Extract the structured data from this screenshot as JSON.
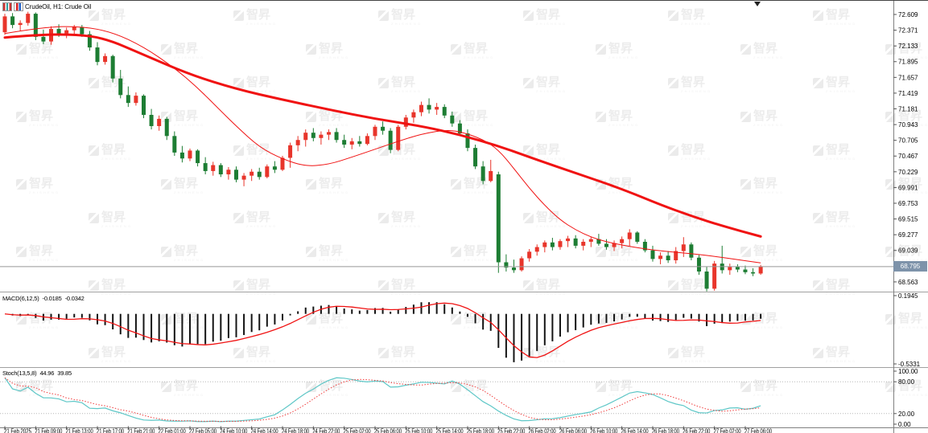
{
  "window": {
    "symbol_label": "CrudeOil, H1: Crude Oil"
  },
  "watermark": {
    "text": "智昇",
    "subtext": "ZHISHENG"
  },
  "colors": {
    "up": "#e8352b",
    "down": "#1d7d33",
    "ma": "#f01212",
    "macd_hist": "#141414",
    "macd_signal": "#f01212",
    "stoch_main": "#5ec7c7",
    "stoch_signal": "#f03c3c",
    "separator": "#a0a0a0",
    "axis_line": "#808080",
    "top_border": "#444444",
    "price_line": "#999999",
    "badge_bg": "#7e93aa",
    "badge_text": "#ffffff",
    "level_dots": "#b8b8b8"
  },
  "price_axis": {
    "current": "68.795"
  },
  "indicators": {
    "macd": {
      "name": "MACD(6,12,5)",
      "main": "-0.0185",
      "signal": "-0.0342"
    },
    "stoch": {
      "name": "Stoch(13,5,8)",
      "main": "44.96",
      "signal": "39.85"
    }
  },
  "chart_data": {
    "type": "candlestick",
    "title": "CrudeOil, H1: Crude Oil",
    "symbol": "Crude Oil",
    "timeframe": "H1",
    "price_axis_labels": [
      "72.609",
      "72.371",
      "72.133",
      "71.895",
      "71.657",
      "71.419",
      "71.181",
      "70.943",
      "70.705",
      "70.467",
      "70.229",
      "69.991",
      "69.753",
      "69.515",
      "69.277",
      "69.039",
      "68.563"
    ],
    "price_step": 0.238,
    "price_top_label": 72.609,
    "current_price": 68.795,
    "time_labels": [
      "21 Feb 2025",
      "21 Feb 09:00",
      "21 Feb 13:00",
      "21 Feb 17:00",
      "21 Feb 21:00",
      "22 Feb 01:00",
      "22 Feb 05:00",
      "24 Feb 10:00",
      "24 Feb 14:00",
      "24 Feb 18:00",
      "24 Feb 22:00",
      "25 Feb 02:00",
      "25 Feb 06:00",
      "25 Feb 10:00",
      "25 Feb 14:00",
      "25 Feb 18:00",
      "25 Feb 22:00",
      "26 Feb 02:00",
      "26 Feb 06:00",
      "26 Feb 10:00",
      "26 Feb 14:00",
      "26 Feb 18:00",
      "26 Feb 22:00",
      "27 Feb 02:00",
      "27 Feb 06:00"
    ],
    "candles_per_time_label": 4,
    "ohlc": [
      [
        72.34,
        72.62,
        72.3,
        72.58
      ],
      [
        72.58,
        72.63,
        72.4,
        72.45
      ],
      [
        72.45,
        72.52,
        72.36,
        72.48
      ],
      [
        72.48,
        72.65,
        72.44,
        72.62
      ],
      [
        72.62,
        72.64,
        72.22,
        72.27
      ],
      [
        72.27,
        72.38,
        72.16,
        72.2
      ],
      [
        72.2,
        72.43,
        72.15,
        72.39
      ],
      [
        72.39,
        72.46,
        72.27,
        72.32
      ],
      [
        72.32,
        72.41,
        72.25,
        72.37
      ],
      [
        72.37,
        72.45,
        72.3,
        72.42
      ],
      [
        72.42,
        72.45,
        72.27,
        72.31
      ],
      [
        72.31,
        72.36,
        72.06,
        72.11
      ],
      [
        72.11,
        72.19,
        71.84,
        71.89
      ],
      [
        71.89,
        72.02,
        71.85,
        71.98
      ],
      [
        71.98,
        72.0,
        71.58,
        71.64
      ],
      [
        71.64,
        71.77,
        71.34,
        71.39
      ],
      [
        71.39,
        71.52,
        71.21,
        71.27
      ],
      [
        71.27,
        71.43,
        71.23,
        71.38
      ],
      [
        71.38,
        71.4,
        71.04,
        71.09
      ],
      [
        71.09,
        71.18,
        70.87,
        70.92
      ],
      [
        70.92,
        71.08,
        70.85,
        71.03
      ],
      [
        71.03,
        71.06,
        70.71,
        70.77
      ],
      [
        70.77,
        70.84,
        70.47,
        70.52
      ],
      [
        70.52,
        70.62,
        70.37,
        70.43
      ],
      [
        70.43,
        70.58,
        70.39,
        70.55
      ],
      [
        70.55,
        70.57,
        70.31,
        70.36
      ],
      [
        70.36,
        70.45,
        70.19,
        70.24
      ],
      [
        70.24,
        70.38,
        70.17,
        70.33
      ],
      [
        70.33,
        70.36,
        70.15,
        70.19
      ],
      [
        70.19,
        70.3,
        70.11,
        70.26
      ],
      [
        70.26,
        70.31,
        70.07,
        70.11
      ],
      [
        70.11,
        70.21,
        70.01,
        70.17
      ],
      [
        70.17,
        70.27,
        70.09,
        70.23
      ],
      [
        70.23,
        70.29,
        70.11,
        70.15
      ],
      [
        70.15,
        70.34,
        70.13,
        70.31
      ],
      [
        70.31,
        70.39,
        70.21,
        70.26
      ],
      [
        70.26,
        70.47,
        70.24,
        70.44
      ],
      [
        70.44,
        70.67,
        70.29,
        70.63
      ],
      [
        70.63,
        70.77,
        70.54,
        70.71
      ],
      [
        70.71,
        70.87,
        70.61,
        70.82
      ],
      [
        70.82,
        70.89,
        70.69,
        70.74
      ],
      [
        70.74,
        70.84,
        70.64,
        70.79
      ],
      [
        70.79,
        70.87,
        70.71,
        70.83
      ],
      [
        70.83,
        70.89,
        70.67,
        70.71
      ],
      [
        70.71,
        70.79,
        70.59,
        70.64
      ],
      [
        70.64,
        70.74,
        70.57,
        70.69
      ],
      [
        70.69,
        70.77,
        70.61,
        70.65
      ],
      [
        70.65,
        70.81,
        70.63,
        70.77
      ],
      [
        70.77,
        70.94,
        70.71,
        70.91
      ],
      [
        70.91,
        70.99,
        70.79,
        70.85
      ],
      [
        70.85,
        70.89,
        70.51,
        70.56
      ],
      [
        70.56,
        70.94,
        70.54,
        70.91
      ],
      [
        70.91,
        71.09,
        70.87,
        71.05
      ],
      [
        71.05,
        71.17,
        70.97,
        71.13
      ],
      [
        71.13,
        71.29,
        71.07,
        71.24
      ],
      [
        71.24,
        71.34,
        71.11,
        71.17
      ],
      [
        71.17,
        71.27,
        71.09,
        71.21
      ],
      [
        71.21,
        71.25,
        71.04,
        71.08
      ],
      [
        71.08,
        71.14,
        70.91,
        70.96
      ],
      [
        70.96,
        71.01,
        70.77,
        70.81
      ],
      [
        70.81,
        70.87,
        70.54,
        70.59
      ],
      [
        70.59,
        70.64,
        70.27,
        70.31
      ],
      [
        70.31,
        70.39,
        70.04,
        70.09
      ],
      [
        70.09,
        70.41,
        70.07,
        70.24
      ],
      [
        70.19,
        70.23,
        68.7,
        68.86
      ],
      [
        68.86,
        68.98,
        68.72,
        68.78
      ],
      [
        68.78,
        68.9,
        68.7,
        68.74
      ],
      [
        68.74,
        68.95,
        68.72,
        68.92
      ],
      [
        68.92,
        69.06,
        68.87,
        69.02
      ],
      [
        69.02,
        69.13,
        68.96,
        69.09
      ],
      [
        69.09,
        69.19,
        69.01,
        69.16
      ],
      [
        69.16,
        69.23,
        69.04,
        69.09
      ],
      [
        69.09,
        69.21,
        69.05,
        69.18
      ],
      [
        69.18,
        69.26,
        69.09,
        69.22
      ],
      [
        69.22,
        69.27,
        69.07,
        69.11
      ],
      [
        69.11,
        69.21,
        69.04,
        69.17
      ],
      [
        69.17,
        69.25,
        69.09,
        69.21
      ],
      [
        69.21,
        69.29,
        69.11,
        69.14
      ],
      [
        69.14,
        69.21,
        69.05,
        69.09
      ],
      [
        69.09,
        69.19,
        69.03,
        69.15
      ],
      [
        69.15,
        69.25,
        69.07,
        69.21
      ],
      [
        69.21,
        69.36,
        69.11,
        69.31
      ],
      [
        69.31,
        69.33,
        69.14,
        69.17
      ],
      [
        69.17,
        69.21,
        69.01,
        69.04
      ],
      [
        69.04,
        69.11,
        68.87,
        68.91
      ],
      [
        68.91,
        69.01,
        68.83,
        68.96
      ],
      [
        68.96,
        69.03,
        68.85,
        68.89
      ],
      [
        68.89,
        69.09,
        68.84,
        69.03
      ],
      [
        69.03,
        69.24,
        68.94,
        69.13
      ],
      [
        69.13,
        69.16,
        68.89,
        68.93
      ],
      [
        68.93,
        68.97,
        68.67,
        68.72
      ],
      [
        68.72,
        68.79,
        68.42,
        68.46
      ],
      [
        68.46,
        68.88,
        68.43,
        68.84
      ],
      [
        68.84,
        69.11,
        68.69,
        68.74
      ],
      [
        68.74,
        68.84,
        68.67,
        68.79
      ],
      [
        68.79,
        68.83,
        68.71,
        68.75
      ],
      [
        68.75,
        68.81,
        68.68,
        68.71
      ],
      [
        68.71,
        68.77,
        68.65,
        68.69
      ],
      [
        68.69,
        68.82,
        68.67,
        68.795
      ]
    ],
    "ma_slow": [
      [
        0,
        72.26
      ],
      [
        4,
        72.3
      ],
      [
        9,
        72.31
      ],
      [
        13,
        72.25
      ],
      [
        18,
        72.0
      ],
      [
        24,
        71.7
      ],
      [
        30,
        71.48
      ],
      [
        36,
        71.32
      ],
      [
        42,
        71.17
      ],
      [
        48,
        71.03
      ],
      [
        54,
        70.92
      ],
      [
        59,
        70.79
      ],
      [
        64,
        70.62
      ],
      [
        69,
        70.41
      ],
      [
        74,
        70.21
      ],
      [
        80,
        69.97
      ],
      [
        85,
        69.73
      ],
      [
        89,
        69.56
      ],
      [
        93,
        69.41
      ],
      [
        98,
        69.25
      ]
    ],
    "ma_fast": [
      [
        0,
        72.32
      ],
      [
        5,
        72.42
      ],
      [
        10,
        72.43
      ],
      [
        14,
        72.34
      ],
      [
        18,
        72.12
      ],
      [
        22,
        71.8
      ],
      [
        25,
        71.5
      ],
      [
        28,
        71.15
      ],
      [
        30,
        70.92
      ],
      [
        33,
        70.6
      ],
      [
        36,
        70.42
      ],
      [
        39,
        70.31
      ],
      [
        42,
        70.34
      ],
      [
        45,
        70.45
      ],
      [
        48,
        70.57
      ],
      [
        51,
        70.69
      ],
      [
        54,
        70.8
      ],
      [
        57,
        70.86
      ],
      [
        59,
        70.84
      ],
      [
        62,
        70.72
      ],
      [
        64,
        70.56
      ],
      [
        66,
        70.28
      ],
      [
        68,
        69.98
      ],
      [
        70,
        69.72
      ],
      [
        72,
        69.5
      ],
      [
        74,
        69.35
      ],
      [
        76,
        69.24
      ],
      [
        78,
        69.17
      ],
      [
        80,
        69.12
      ],
      [
        83,
        69.06
      ],
      [
        86,
        69.02
      ],
      [
        89,
        68.99
      ],
      [
        92,
        68.95
      ],
      [
        95,
        68.9
      ],
      [
        98,
        68.85
      ]
    ],
    "macd": {
      "params": [
        6,
        12,
        5
      ],
      "last_main": -0.0185,
      "last_signal": -0.0342,
      "axis_max": "0.1945",
      "axis_min": "-0.5331"
    },
    "stoch": {
      "params": [
        13,
        5,
        8
      ],
      "last_main": 44.96,
      "last_signal": 39.85,
      "levels": [
        80,
        20
      ],
      "axis_labels": [
        "100.00",
        "80.00",
        "20.00",
        "0.00"
      ],
      "axis_values": [
        100,
        80,
        20,
        0
      ]
    }
  }
}
